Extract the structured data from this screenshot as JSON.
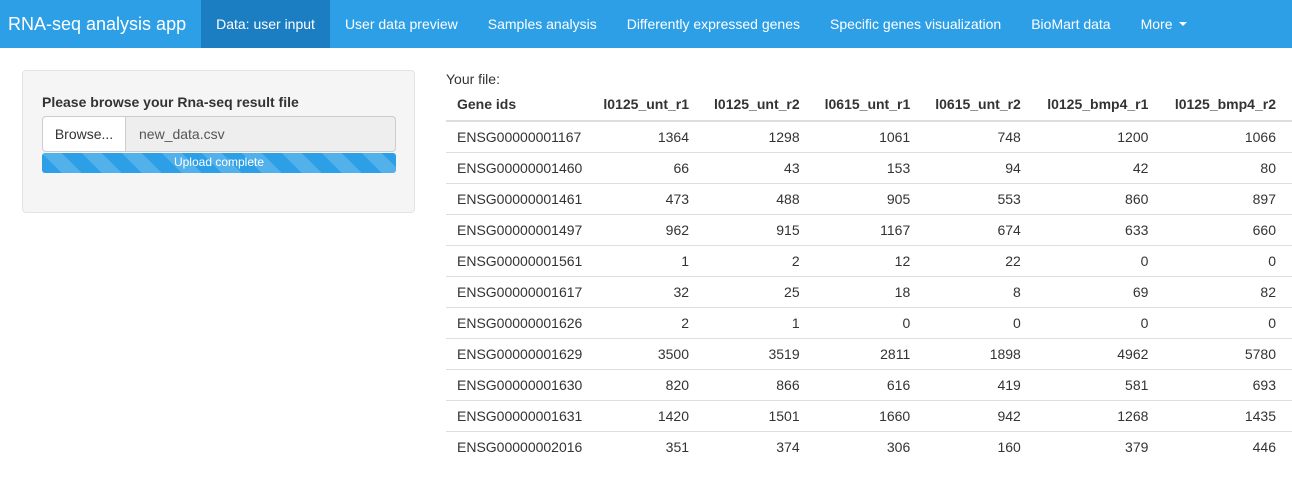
{
  "navbar": {
    "brand": "RNA-seq analysis app",
    "items": [
      {
        "label": "Data: user input",
        "active": true
      },
      {
        "label": "User data preview",
        "active": false
      },
      {
        "label": "Samples analysis",
        "active": false
      },
      {
        "label": "Differently expressed genes",
        "active": false
      },
      {
        "label": "Specific genes visualization",
        "active": false
      },
      {
        "label": "BioMart data",
        "active": false
      }
    ],
    "more_label": "More"
  },
  "upload": {
    "label": "Please browse your Rna-seq result file",
    "browse_label": "Browse...",
    "file_name": "new_data.csv",
    "progress_text": "Upload complete",
    "progress_fraction": 1.0
  },
  "file_table": {
    "caption": "Your file:",
    "columns": [
      "Gene ids",
      "l0125_unt_r1",
      "l0125_unt_r2",
      "l0615_unt_r1",
      "l0615_unt_r2",
      "l0125_bmp4_r1",
      "l0125_bmp4_r2"
    ],
    "rows": [
      [
        "ENSG00000001167",
        "1364",
        "1298",
        "1061",
        "748",
        "1200",
        "1066"
      ],
      [
        "ENSG00000001460",
        "66",
        "43",
        "153",
        "94",
        "42",
        "80"
      ],
      [
        "ENSG00000001461",
        "473",
        "488",
        "905",
        "553",
        "860",
        "897"
      ],
      [
        "ENSG00000001497",
        "962",
        "915",
        "1167",
        "674",
        "633",
        "660"
      ],
      [
        "ENSG00000001561",
        "1",
        "2",
        "12",
        "22",
        "0",
        "0"
      ],
      [
        "ENSG00000001617",
        "32",
        "25",
        "18",
        "8",
        "69",
        "82"
      ],
      [
        "ENSG00000001626",
        "2",
        "1",
        "0",
        "0",
        "0",
        "0"
      ],
      [
        "ENSG00000001629",
        "3500",
        "3519",
        "2811",
        "1898",
        "4962",
        "5780"
      ],
      [
        "ENSG00000001630",
        "820",
        "866",
        "616",
        "419",
        "581",
        "693"
      ],
      [
        "ENSG00000001631",
        "1420",
        "1501",
        "1660",
        "942",
        "1268",
        "1435"
      ],
      [
        "ENSG00000002016",
        "351",
        "374",
        "306",
        "160",
        "379",
        "446"
      ]
    ]
  }
}
